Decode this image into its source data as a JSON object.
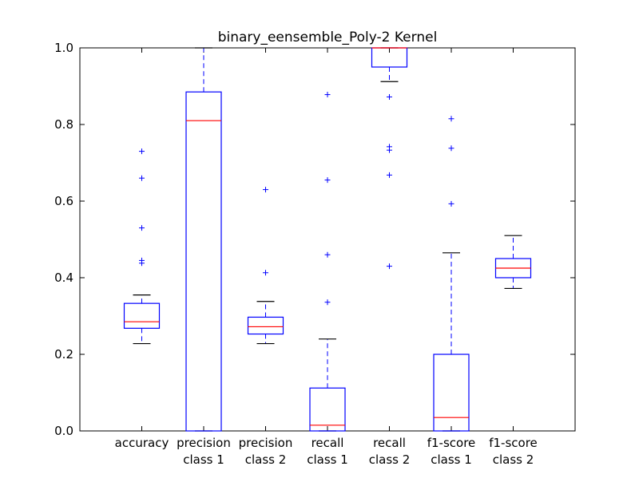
{
  "chart_data": {
    "type": "boxplot",
    "title": "binary_eensemble_Poly-2 Kernel",
    "xlabel": "",
    "ylabel": "",
    "ylim": [
      0.0,
      1.0
    ],
    "y_ticks": [
      "0.0",
      "0.2",
      "0.4",
      "0.6",
      "0.8",
      "1.0"
    ],
    "categories": [
      [
        "accuracy"
      ],
      [
        "precision",
        "class 1"
      ],
      [
        "precision",
        "class 2"
      ],
      [
        "recall",
        "class 1"
      ],
      [
        "recall",
        "class 2"
      ],
      [
        "f1-score",
        "class 1"
      ],
      [
        "f1-score",
        "class 2"
      ]
    ],
    "boxes": [
      {
        "whisker_low": 0.228,
        "q1": 0.268,
        "median": 0.285,
        "q3": 0.333,
        "whisker_high": 0.355,
        "outliers": [
          0.73,
          0.66,
          0.53,
          0.445,
          0.438
        ]
      },
      {
        "whisker_low": 0.0,
        "q1": 0.0,
        "median": 0.81,
        "q3": 0.885,
        "whisker_high": 1.0,
        "outliers": []
      },
      {
        "whisker_low": 0.228,
        "q1": 0.253,
        "median": 0.272,
        "q3": 0.297,
        "whisker_high": 0.338,
        "outliers": [
          0.63,
          0.413
        ]
      },
      {
        "whisker_low": 0.0,
        "q1": 0.0,
        "median": 0.015,
        "q3": 0.112,
        "whisker_high": 0.24,
        "outliers": [
          0.878,
          0.655,
          0.46,
          0.336
        ]
      },
      {
        "whisker_low": 0.912,
        "q1": 0.95,
        "median": 1.0,
        "q3": 1.0,
        "whisker_high": 1.0,
        "outliers": [
          0.872,
          0.742,
          0.733,
          0.668,
          0.43
        ]
      },
      {
        "whisker_low": 0.0,
        "q1": 0.0,
        "median": 0.035,
        "q3": 0.2,
        "whisker_high": 0.465,
        "outliers": [
          0.815,
          0.738,
          0.593
        ]
      },
      {
        "whisker_low": 0.372,
        "q1": 0.4,
        "median": 0.425,
        "q3": 0.45,
        "whisker_high": 0.51,
        "outliers": []
      }
    ],
    "colors": {
      "box": "#0000ff",
      "median": "#ff0000",
      "cap": "#000000",
      "axis": "#000000"
    },
    "grid": false,
    "legend": "none"
  }
}
